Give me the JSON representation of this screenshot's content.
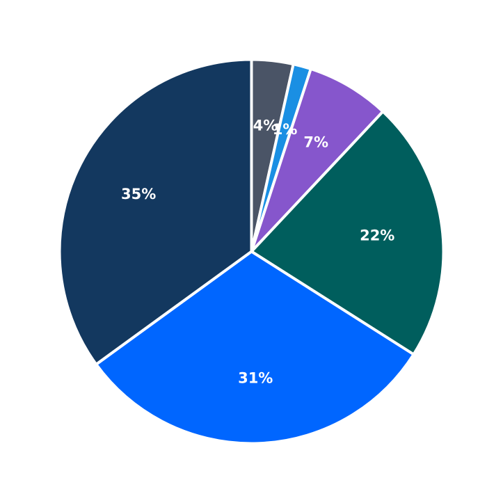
{
  "chart_data": {
    "type": "pie",
    "start_angle_deg": 90,
    "direction": "clockwise",
    "slices": [
      {
        "label": "4%",
        "value": 3.5,
        "color": "#4a5466"
      },
      {
        "label": "1%",
        "value": 1.5,
        "color": "#1a8fe3"
      },
      {
        "label": "7%",
        "value": 7.0,
        "color": "#8656cc"
      },
      {
        "label": "22%",
        "value": 22.0,
        "color": "#005e5d"
      },
      {
        "label": "31%",
        "value": 31.0,
        "color": "#0066ff"
      },
      {
        "label": "35%",
        "value": 35.0,
        "color": "#13385f"
      }
    ]
  }
}
